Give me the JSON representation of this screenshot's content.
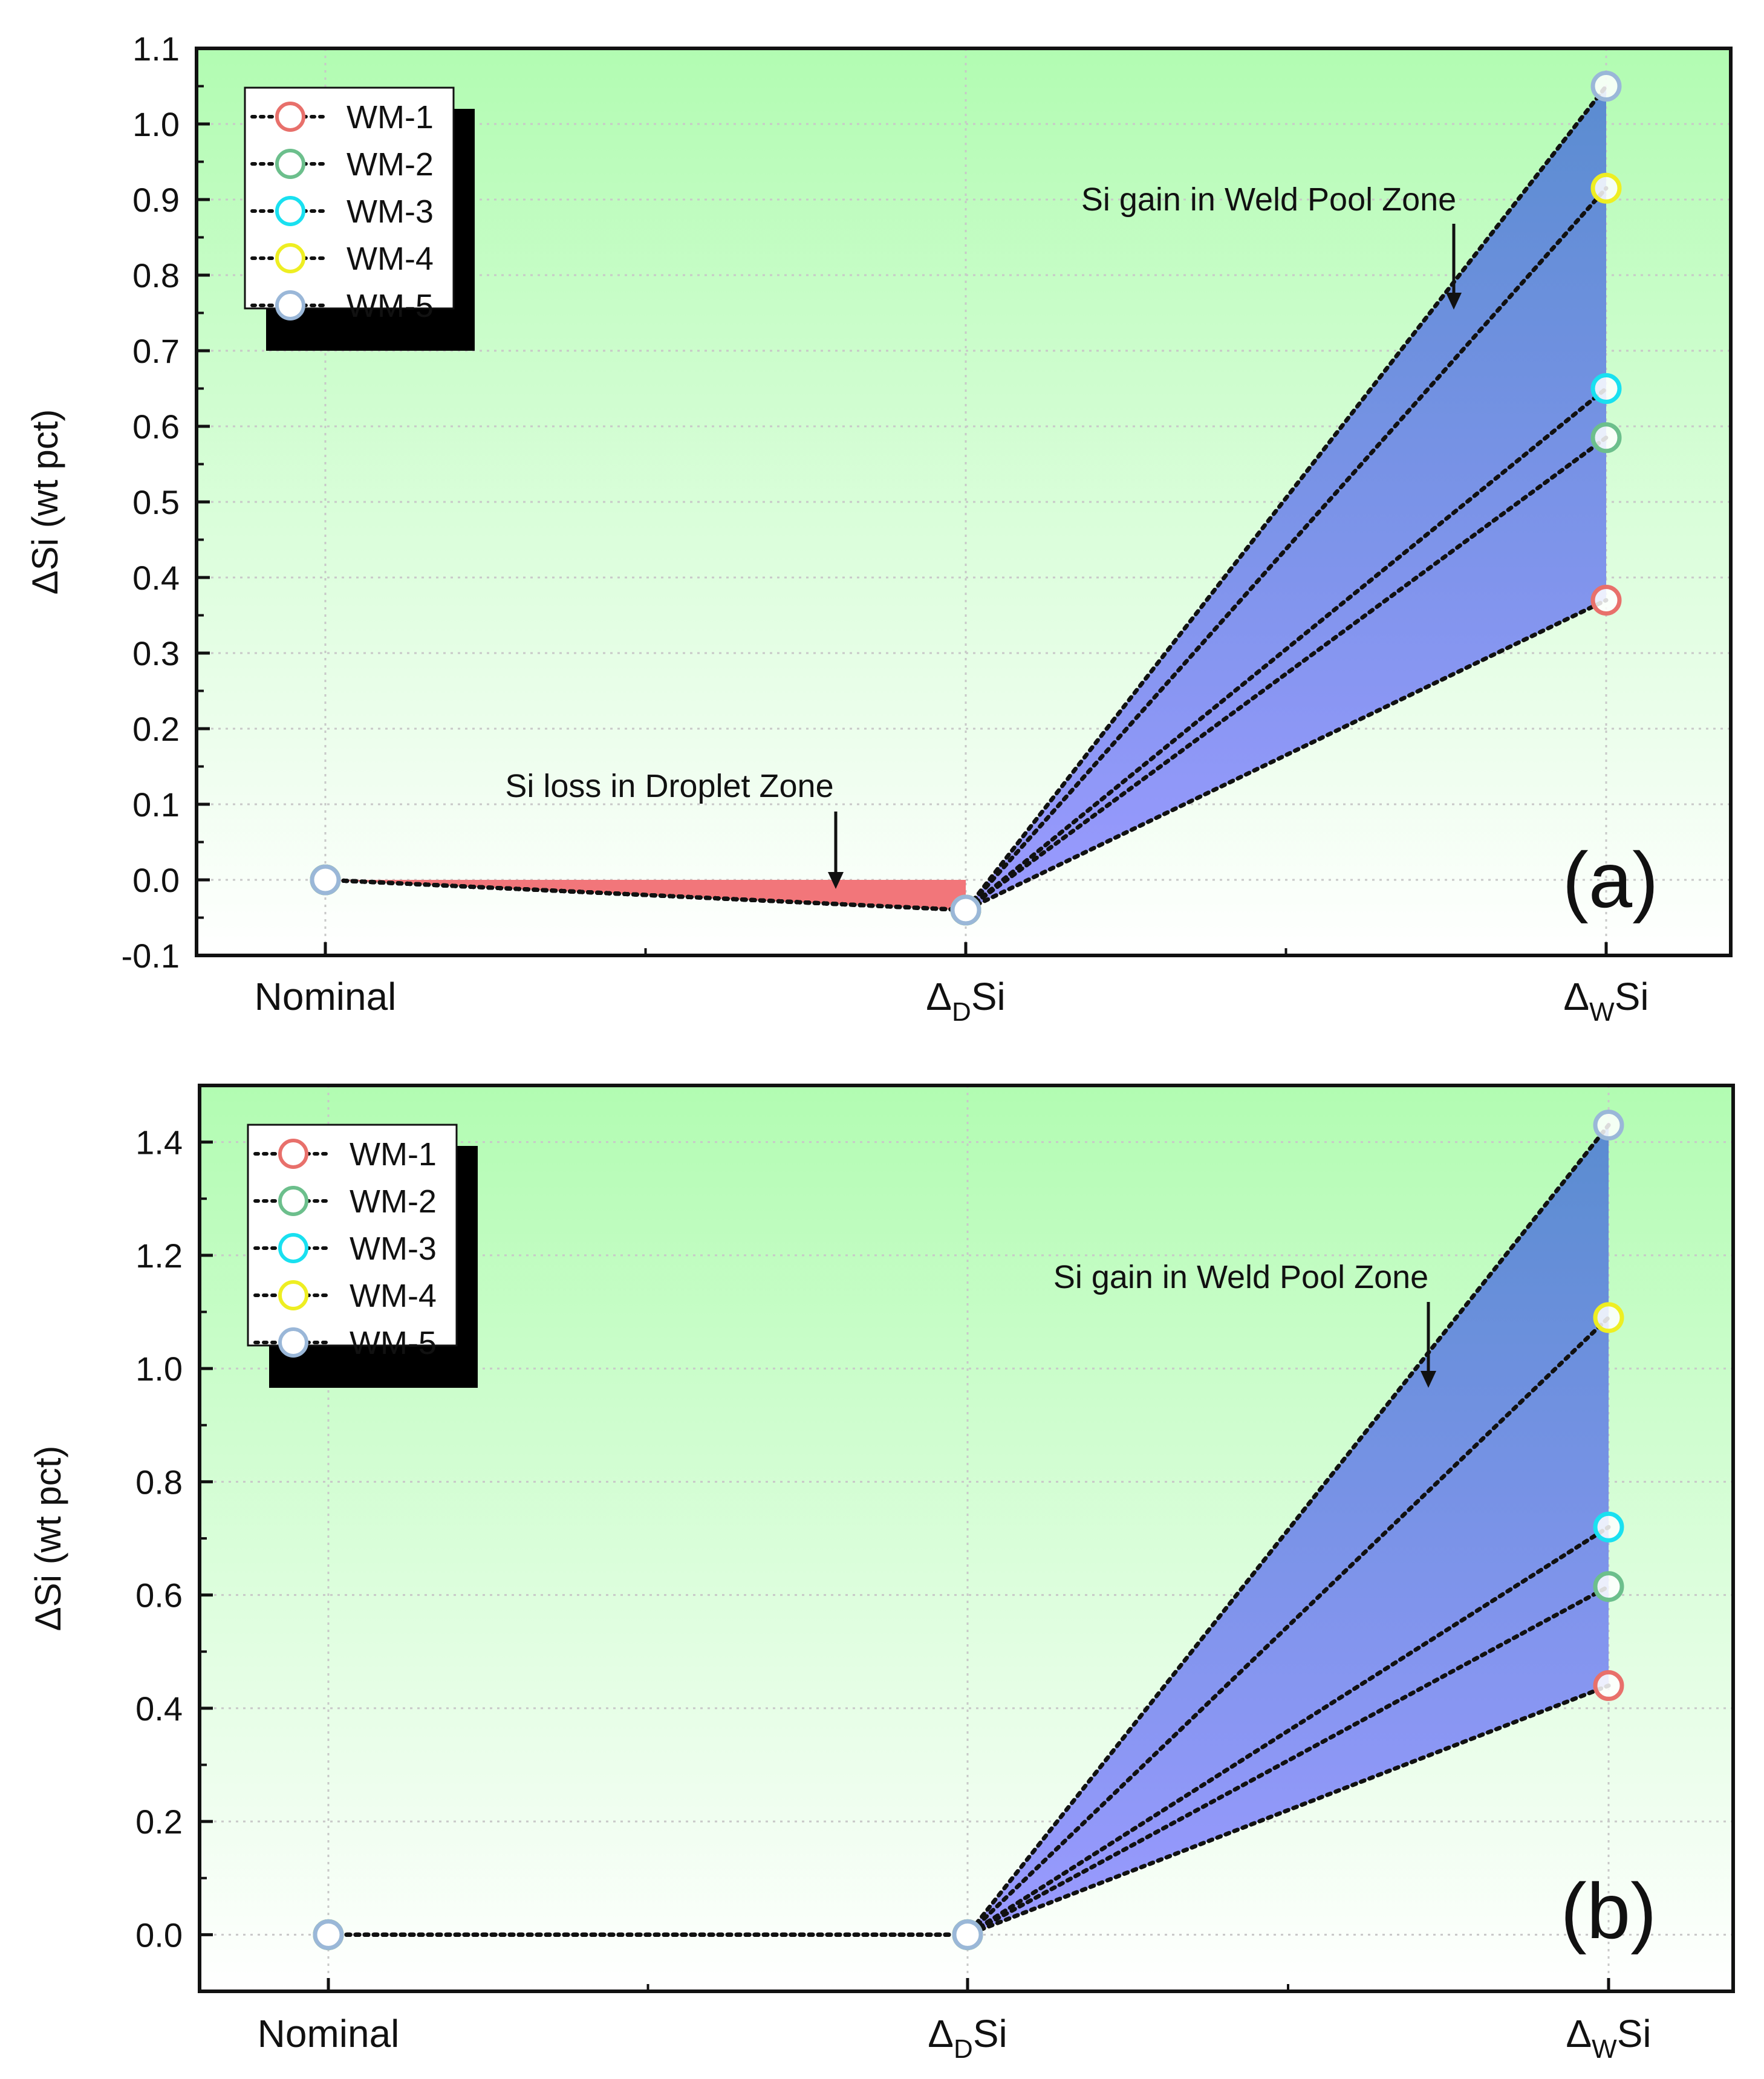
{
  "chart_data": [
    {
      "type": "line",
      "panel_label": "(a)",
      "ylabel": "ΔSi (wt pct)",
      "ylim": [
        -0.1,
        1.1
      ],
      "ytick_step": 0.1,
      "yticks": [
        "-0.1",
        "0.0",
        "0.1",
        "0.2",
        "0.3",
        "0.4",
        "0.5",
        "0.6",
        "0.7",
        "0.8",
        "0.9",
        "1.0",
        "1.1"
      ],
      "categories": [
        {
          "main": "Nominal",
          "sub": ""
        },
        {
          "main": "Δ",
          "sub": "D",
          "tail": "Si"
        },
        {
          "main": "Δ",
          "sub": "W",
          "tail": "Si"
        }
      ],
      "series": [
        {
          "name": "WM-1",
          "color": "#e8706b",
          "values": [
            0.0,
            -0.04,
            0.37
          ]
        },
        {
          "name": "WM-2",
          "color": "#6cbf8c",
          "values": [
            0.0,
            -0.04,
            0.585
          ]
        },
        {
          "name": "WM-3",
          "color": "#19e0f0",
          "values": [
            0.0,
            -0.04,
            0.65
          ]
        },
        {
          "name": "WM-4",
          "color": "#eeee22",
          "values": [
            0.0,
            -0.04,
            0.915
          ]
        },
        {
          "name": "WM-5",
          "color": "#9ab7d8",
          "values": [
            0.0,
            -0.04,
            1.05
          ]
        }
      ],
      "annotations": [
        {
          "text": "Si loss in Droplet Zone",
          "points_to": [
            1.8,
            -0.01
          ]
        },
        {
          "text": "Si gain in Weld Pool Zone",
          "points_to": [
            1.77,
            0.76
          ]
        }
      ],
      "background_gradient": [
        "#b2fcb2",
        "#ffffff"
      ],
      "loss_fill_color": "#f2767a",
      "gain_fill_colors": [
        "#5a8cd0",
        "#9a9aff"
      ],
      "legend": "top-left"
    },
    {
      "type": "line",
      "panel_label": "(b)",
      "ylabel": "ΔSi (wt pct)",
      "ylim": [
        -0.1,
        1.5
      ],
      "ytick_step": 0.2,
      "yticks": [
        "0.0",
        "0.2",
        "0.4",
        "0.6",
        "0.8",
        "1.0",
        "1.2",
        "1.4"
      ],
      "categories": [
        {
          "main": "Nominal",
          "sub": ""
        },
        {
          "main": "Δ",
          "sub": "D",
          "tail": "Si"
        },
        {
          "main": "Δ",
          "sub": "W",
          "tail": "Si"
        }
      ],
      "series": [
        {
          "name": "WM-1",
          "color": "#e8706b",
          "values": [
            0.0,
            0.0,
            0.44
          ]
        },
        {
          "name": "WM-2",
          "color": "#6cbf8c",
          "values": [
            0.0,
            0.0,
            0.615
          ]
        },
        {
          "name": "WM-3",
          "color": "#19e0f0",
          "values": [
            0.0,
            0.0,
            0.72
          ]
        },
        {
          "name": "WM-4",
          "color": "#eeee22",
          "values": [
            0.0,
            0.0,
            1.09
          ]
        },
        {
          "name": "WM-5",
          "color": "#9ab7d8",
          "values": [
            0.0,
            0.0,
            1.43
          ]
        }
      ],
      "annotations": [
        {
          "text": "Si gain in Weld Pool Zone",
          "points_to": [
            1.72,
            0.98
          ]
        }
      ],
      "background_gradient": [
        "#b2fcb2",
        "#ffffff"
      ],
      "gain_fill_colors": [
        "#5a8cd0",
        "#9a9aff"
      ],
      "legend": "top-left"
    }
  ]
}
